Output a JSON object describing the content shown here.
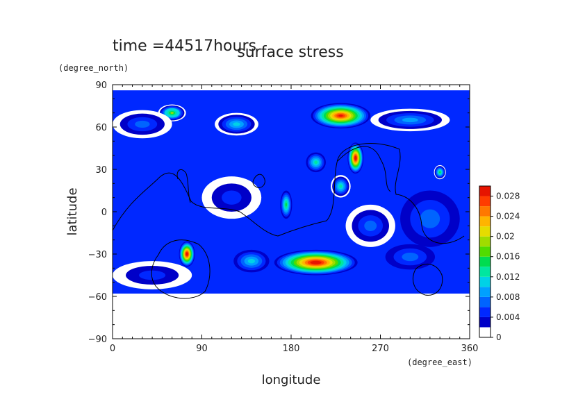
{
  "chart_data": {
    "type": "heatmap",
    "title": "surface stress",
    "subtitle": "time =44517hours",
    "xlabel": "longitude",
    "xunit": "(degree_east)",
    "ylabel": "latitude",
    "yunit": "(degree_north)",
    "xlim": [
      0,
      360
    ],
    "ylim": [
      -90,
      90
    ],
    "x_ticks": [
      0,
      90,
      180,
      270,
      360
    ],
    "x_tick_labels": [
      "0",
      "90",
      "180",
      "270",
      "360"
    ],
    "y_ticks": [
      -90,
      -60,
      -30,
      0,
      30,
      60,
      90
    ],
    "y_tick_labels": [
      "−90",
      "−60",
      "−30",
      "0",
      "30",
      "60",
      "90"
    ],
    "colorbar": {
      "min": 0,
      "max": 0.03,
      "tick_values": [
        0,
        0.004,
        0.008,
        0.012,
        0.016,
        0.02,
        0.024,
        0.028
      ],
      "tick_labels": [
        "0",
        "0.004",
        "0.008",
        "0.012",
        "0.016",
        "0.02",
        "0.024",
        "0.028"
      ],
      "colors": [
        "#ffffff",
        "#0000c8",
        "#0028ff",
        "#0064ff",
        "#00a0ff",
        "#00d2e6",
        "#00e6a0",
        "#00dc50",
        "#50dc00",
        "#a0dc00",
        "#e6dc00",
        "#ffb400",
        "#ff7800",
        "#ff3c00",
        "#e61400"
      ]
    },
    "field_blobs": [
      {
        "lon": 60,
        "lat": 70,
        "rlon": 14,
        "rlat": 6,
        "value": 0.018
      },
      {
        "lon": 230,
        "lat": 68,
        "rlon": 30,
        "rlat": 9,
        "value": 0.028
      },
      {
        "lon": 125,
        "lat": 62,
        "rlon": 22,
        "rlat": 8,
        "value": 0.011
      },
      {
        "lon": 300,
        "lat": 65,
        "rlon": 40,
        "rlat": 8,
        "value": 0.009
      },
      {
        "lon": 30,
        "lat": 62,
        "rlon": 30,
        "rlat": 10,
        "value": 0.007
      },
      {
        "lon": 245,
        "lat": 38,
        "rlon": 8,
        "rlat": 11,
        "value": 0.03
      },
      {
        "lon": 205,
        "lat": 35,
        "rlon": 10,
        "rlat": 7,
        "value": 0.012
      },
      {
        "lon": 175,
        "lat": 5,
        "rlon": 6,
        "rlat": 10,
        "value": 0.014
      },
      {
        "lon": 230,
        "lat": 18,
        "rlon": 10,
        "rlat": 8,
        "value": 0.013
      },
      {
        "lon": 330,
        "lat": 28,
        "rlon": 6,
        "rlat": 5,
        "value": 0.015
      },
      {
        "lon": 205,
        "lat": -36,
        "rlon": 42,
        "rlat": 9,
        "value": 0.03
      },
      {
        "lon": 75,
        "lat": -30,
        "rlon": 8,
        "rlat": 9,
        "value": 0.03
      },
      {
        "lon": 140,
        "lat": -35,
        "rlon": 18,
        "rlat": 8,
        "value": 0.01
      },
      {
        "lon": 300,
        "lat": -32,
        "rlon": 25,
        "rlat": 9,
        "value": 0.006
      },
      {
        "lon": 40,
        "lat": -45,
        "rlon": 40,
        "rlat": 10,
        "value": 0.005
      },
      {
        "lon": 320,
        "lat": -5,
        "rlon": 30,
        "rlat": 20,
        "value": 0.006
      },
      {
        "lon": 120,
        "lat": 10,
        "rlon": 30,
        "rlat": 15,
        "value": 0.005
      },
      {
        "lon": 260,
        "lat": -10,
        "rlon": 25,
        "rlat": 15,
        "value": 0.007
      }
    ]
  }
}
